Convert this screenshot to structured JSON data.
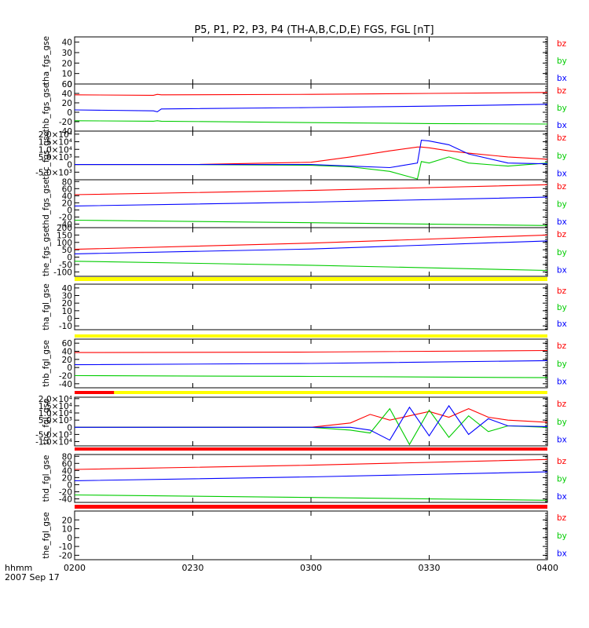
{
  "title": "P5, P1, P2, P3, P4 (TH-A,B,C,D,E) FGS, FGL [nT]",
  "footer": {
    "time_label": "hhmm",
    "date_label": "2007 Sep 17"
  },
  "x_ticks": [
    "0200",
    "0230",
    "0300",
    "0330",
    "0400"
  ],
  "colors": {
    "bx": "#0000ff",
    "by": "#00cc00",
    "bz": "#ff0000",
    "flag_yellow": "#ffff00",
    "flag_red": "#ff0000",
    "axis": "#000000"
  },
  "chart_data": [
    {
      "type": "line",
      "ylabel": "tha_fgs_gse",
      "ylim": [
        0,
        45
      ],
      "yticks": [
        "0",
        "10",
        "20",
        "30",
        "40"
      ],
      "series": []
    },
    {
      "type": "line",
      "ylabel": "thb_fgs_gse",
      "ylim": [
        -40,
        60
      ],
      "yticks": [
        "-40",
        "-20",
        "0",
        "20",
        "40",
        "60"
      ],
      "x_minutes": [
        0,
        20,
        21,
        22,
        60,
        90,
        120
      ],
      "series": [
        {
          "name": "bz",
          "values": [
            37,
            36,
            38,
            37,
            38,
            40,
            42
          ]
        },
        {
          "name": "by",
          "values": [
            -18,
            -19,
            -18,
            -19,
            -22,
            -24,
            -25
          ]
        },
        {
          "name": "bx",
          "values": [
            5,
            3,
            1,
            7,
            10,
            13,
            17
          ]
        }
      ]
    },
    {
      "type": "line",
      "ylabel": "thc_fgs_gse",
      "ylim": [
        -10000,
        22000
      ],
      "yticks": [
        "-5.0×10³",
        "0",
        "5.0×10³",
        "1.0×10⁴",
        "1.5×10⁴",
        "2.0×10⁴"
      ],
      "x_minutes": [
        0,
        30,
        60,
        70,
        80,
        87,
        88,
        90,
        95,
        100,
        110,
        120
      ],
      "series": [
        {
          "name": "bz",
          "values": [
            0,
            0,
            1500,
            5000,
            9000,
            11500,
            11500,
            11000,
            9000,
            7500,
            5000,
            3500
          ]
        },
        {
          "name": "by",
          "values": [
            0,
            0,
            -500,
            -1500,
            -4500,
            -9500,
            2000,
            1000,
            5000,
            1000,
            -1000,
            1000
          ]
        },
        {
          "name": "bx",
          "values": [
            0,
            0,
            0,
            -1000,
            -2000,
            1000,
            16000,
            15500,
            13000,
            7000,
            1000,
            500
          ]
        }
      ]
    },
    {
      "type": "line",
      "ylabel": "thd_fgs_gse",
      "ylim": [
        -50,
        85
      ],
      "yticks": [
        "-40",
        "-20",
        "0",
        "20",
        "40",
        "60",
        "80"
      ],
      "x_minutes": [
        0,
        60,
        120
      ],
      "series": [
        {
          "name": "bz",
          "values": [
            43,
            55,
            71
          ]
        },
        {
          "name": "by",
          "values": [
            -29,
            -36,
            -44
          ]
        },
        {
          "name": "bx",
          "values": [
            11,
            22,
            36
          ]
        }
      ]
    },
    {
      "type": "line",
      "ylabel": "the_fgs_gse",
      "ylim": [
        -130,
        200
      ],
      "yticks": [
        "-100",
        "-50",
        "0",
        "50",
        "100",
        "150",
        "200"
      ],
      "x_minutes": [
        0,
        60,
        120
      ],
      "series": [
        {
          "name": "bz",
          "values": [
            53,
            95,
            150
          ]
        },
        {
          "name": "by",
          "values": [
            -28,
            -55,
            -90
          ]
        },
        {
          "name": "bx",
          "values": [
            22,
            55,
            110
          ]
        }
      ]
    },
    {
      "type": "line",
      "ylabel": "tha_fgl_gse",
      "ylim": [
        -15,
        45
      ],
      "yticks": [
        "-10",
        "0",
        "10",
        "20",
        "30",
        "40"
      ],
      "series": []
    },
    {
      "type": "line",
      "ylabel": "thb_fgl_gse",
      "ylim": [
        -50,
        70
      ],
      "yticks": [
        "-40",
        "-20",
        "0",
        "20",
        "40",
        "60"
      ],
      "x_minutes": [
        0,
        60,
        120
      ],
      "series": [
        {
          "name": "bz",
          "values": [
            37,
            38,
            42
          ]
        },
        {
          "name": "by",
          "values": [
            -20,
            -22,
            -25
          ]
        },
        {
          "name": "bx",
          "values": [
            7,
            10,
            17
          ]
        }
      ]
    },
    {
      "type": "line",
      "ylabel": "thc_fgl_gse",
      "ylim": [
        -13000,
        21000
      ],
      "yticks": [
        "-1.0×10⁴",
        "-5.0×10³",
        "0",
        "5.0×10³",
        "1.0×10⁴",
        "1.5×10⁴",
        "2.0×10⁴"
      ],
      "x_minutes": [
        0,
        60,
        70,
        75,
        80,
        85,
        90,
        95,
        100,
        105,
        110,
        120
      ],
      "series": [
        {
          "name": "bz",
          "values": [
            0,
            0,
            3000,
            9000,
            5000,
            8000,
            11000,
            7000,
            13000,
            7000,
            5000,
            3500
          ]
        },
        {
          "name": "by",
          "values": [
            0,
            0,
            -2000,
            -4000,
            13000,
            -12000,
            12000,
            -7000,
            8000,
            -3000,
            1000,
            0
          ]
        },
        {
          "name": "bx",
          "values": [
            0,
            0,
            0,
            -2000,
            -9000,
            14000,
            -6000,
            15000,
            -5000,
            6000,
            1000,
            500
          ]
        }
      ]
    },
    {
      "type": "line",
      "ylabel": "thd_fgl_gse",
      "ylim": [
        -50,
        85
      ],
      "yticks": [
        "-40",
        "-20",
        "0",
        "20",
        "40",
        "60",
        "80"
      ],
      "x_minutes": [
        0,
        60,
        120
      ],
      "series": [
        {
          "name": "bz",
          "values": [
            43,
            55,
            71
          ]
        },
        {
          "name": "by",
          "values": [
            -29,
            -36,
            -44
          ]
        },
        {
          "name": "bx",
          "values": [
            11,
            22,
            36
          ]
        }
      ]
    },
    {
      "type": "line",
      "ylabel": "the_fgl_gse",
      "ylim": [
        -25,
        30
      ],
      "yticks": [
        "-20",
        "-10",
        "0",
        "10",
        "20"
      ],
      "series": []
    }
  ],
  "flag_bars": [
    {
      "color": "yellow",
      "x_minutes": [
        0,
        120
      ]
    },
    {
      "color": "yellow",
      "x_minutes": [
        0,
        120
      ]
    },
    {
      "color": "yellow",
      "x_minutes": [
        0,
        120
      ],
      "red_x_minutes": [
        0,
        10
      ]
    },
    {
      "color": "red",
      "x_minutes": [
        0,
        120
      ]
    },
    {
      "color": "red",
      "x_minutes": [
        0,
        120
      ]
    }
  ]
}
